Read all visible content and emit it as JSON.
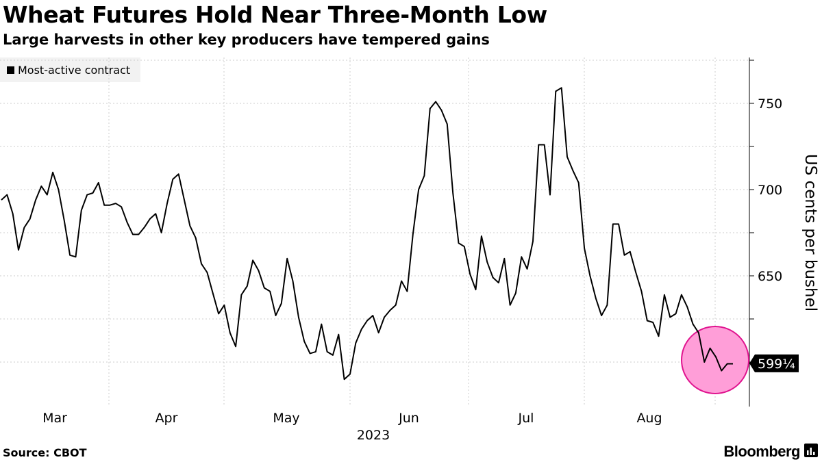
{
  "title": "Wheat Futures Hold Near Three-Month Low",
  "subtitle": "Large harvests in other key producers have tempered gains",
  "legend": {
    "label": "Most-active contract"
  },
  "source": "Source: CBOT",
  "brand": "Bloomberg",
  "brand_icon": "bloomberg-bars-icon",
  "colors": {
    "line": "#000000",
    "highlight_fill": "#ff9ed8",
    "highlight_stroke": "#e0148f",
    "grid": "#cccccc"
  },
  "chart_data": {
    "type": "line",
    "title": "Wheat Futures Hold Near Three-Month Low",
    "subtitle": "Large harvests in other key producers have tempered gains",
    "xlabel": "2023",
    "ylabel": "US cents per bushel",
    "ylim": [
      575,
      780
    ],
    "yticks": [
      650,
      700,
      750
    ],
    "yticks_visible_labels": [
      "650",
      "700",
      "750"
    ],
    "grid": true,
    "legend_position": "top-left",
    "months": [
      "Mar",
      "Apr",
      "May",
      "Jun",
      "Jul",
      "Aug"
    ],
    "year_label": "2023",
    "last_value_label": "599¼",
    "last_value": 599.25,
    "highlight": "last-week-circle",
    "series": [
      {
        "name": "Most-active contract",
        "values": [
          694,
          697,
          686,
          665,
          678,
          683,
          694,
          702,
          697,
          710,
          700,
          682,
          662,
          661,
          688,
          697,
          698,
          704,
          691,
          691,
          692,
          690,
          681,
          674,
          674,
          678,
          683,
          686,
          675,
          692,
          706,
          709,
          694,
          679,
          672,
          657,
          652,
          640,
          628,
          633,
          617,
          609,
          639,
          644,
          659,
          653,
          643,
          641,
          627,
          634,
          660,
          647,
          626,
          612,
          605,
          606,
          622,
          606,
          604,
          616,
          590,
          593,
          611,
          619,
          624,
          627,
          617,
          626,
          630,
          633,
          647,
          641,
          674,
          700,
          708,
          747,
          751,
          746,
          738,
          698,
          669,
          667,
          651,
          642,
          673,
          658,
          649,
          646,
          660,
          633,
          640,
          661,
          654,
          670,
          726,
          726,
          697,
          757,
          759,
          719,
          711,
          704,
          666,
          650,
          637,
          627,
          633,
          680,
          680,
          662,
          664,
          652,
          641,
          624,
          623,
          615,
          639,
          626,
          628,
          639,
          632,
          622,
          617,
          600,
          608,
          603,
          595,
          599,
          599
        ]
      }
    ]
  }
}
